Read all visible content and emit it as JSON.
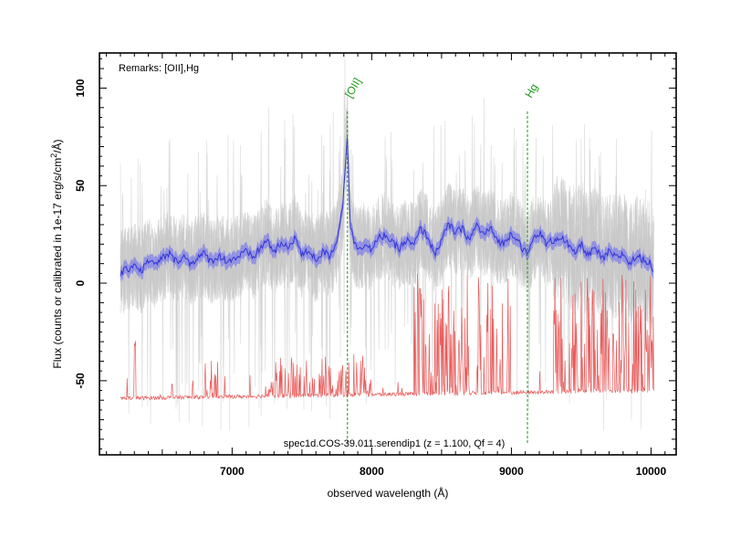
{
  "chart_data": {
    "type": "line",
    "title": "",
    "xlabel": "observed wavelength (Å)",
    "ylabel_parts": [
      "Flux (counts or calibrated in 1e-17 erg/s/cm",
      "2",
      "/",
      "Å",
      ")"
    ],
    "xlim": [
      6050,
      10180
    ],
    "ylim": [
      -88,
      118
    ],
    "x_ticks": [
      7000,
      8000,
      9000,
      10000
    ],
    "y_ticks": [
      -50,
      0,
      50,
      100
    ],
    "remarks": "Remarks: [OII],Hg",
    "spectrum_label": "spec1d.COS-39.011.serendip1 (z = 1.100, Qf = 4)",
    "emission_lines": [
      {
        "name": "[OII]",
        "wavelength": 7826
      },
      {
        "name": "Hg",
        "wavelength": 9115
      }
    ],
    "series": [
      {
        "role": "raw spectrum (unsmoothed)",
        "color": "#c8c8c8",
        "x_range": [
          6200,
          10020
        ],
        "center_level": 15,
        "scatter_range": [
          -25,
          60
        ]
      },
      {
        "role": "smoothed spectrum",
        "color": "#3434d6",
        "band_color": "#8080e8",
        "x": [
          6200,
          6250,
          6300,
          6350,
          6400,
          6450,
          6500,
          6550,
          6600,
          6650,
          6700,
          6750,
          6800,
          6850,
          6900,
          6950,
          7000,
          7050,
          7100,
          7150,
          7200,
          7250,
          7300,
          7350,
          7400,
          7450,
          7500,
          7550,
          7600,
          7650,
          7700,
          7750,
          7790,
          7810,
          7826,
          7845,
          7870,
          7900,
          7950,
          8000,
          8050,
          8100,
          8150,
          8200,
          8250,
          8300,
          8350,
          8400,
          8450,
          8500,
          8550,
          8600,
          8650,
          8700,
          8750,
          8800,
          8850,
          8900,
          8950,
          9000,
          9050,
          9080,
          9115,
          9150,
          9200,
          9250,
          9300,
          9350,
          9400,
          9450,
          9500,
          9550,
          9600,
          9650,
          9700,
          9750,
          9800,
          9850,
          9900,
          9950,
          10000,
          10020
        ],
        "y": [
          5,
          7,
          10,
          6,
          12,
          9,
          13,
          15,
          11,
          14,
          10,
          13,
          15,
          11,
          14,
          12,
          12,
          14,
          16,
          13,
          18,
          22,
          16,
          20,
          18,
          24,
          14,
          17,
          12,
          16,
          14,
          22,
          38,
          60,
          78,
          30,
          22,
          18,
          20,
          17,
          23,
          25,
          20,
          18,
          22,
          19,
          28,
          24,
          15,
          22,
          30,
          26,
          28,
          22,
          30,
          25,
          28,
          22,
          20,
          26,
          22,
          18,
          14,
          22,
          26,
          20,
          22,
          24,
          20,
          15,
          20,
          14,
          18,
          12,
          16,
          13,
          15,
          10,
          14,
          12,
          10,
          4
        ],
        "band_halfwidth": 3.5
      },
      {
        "role": "sky / noise spectrum",
        "color": "#e85a5a",
        "x_range": [
          6200,
          10020
        ],
        "base_level": -60,
        "peak_level": -10
      }
    ]
  }
}
